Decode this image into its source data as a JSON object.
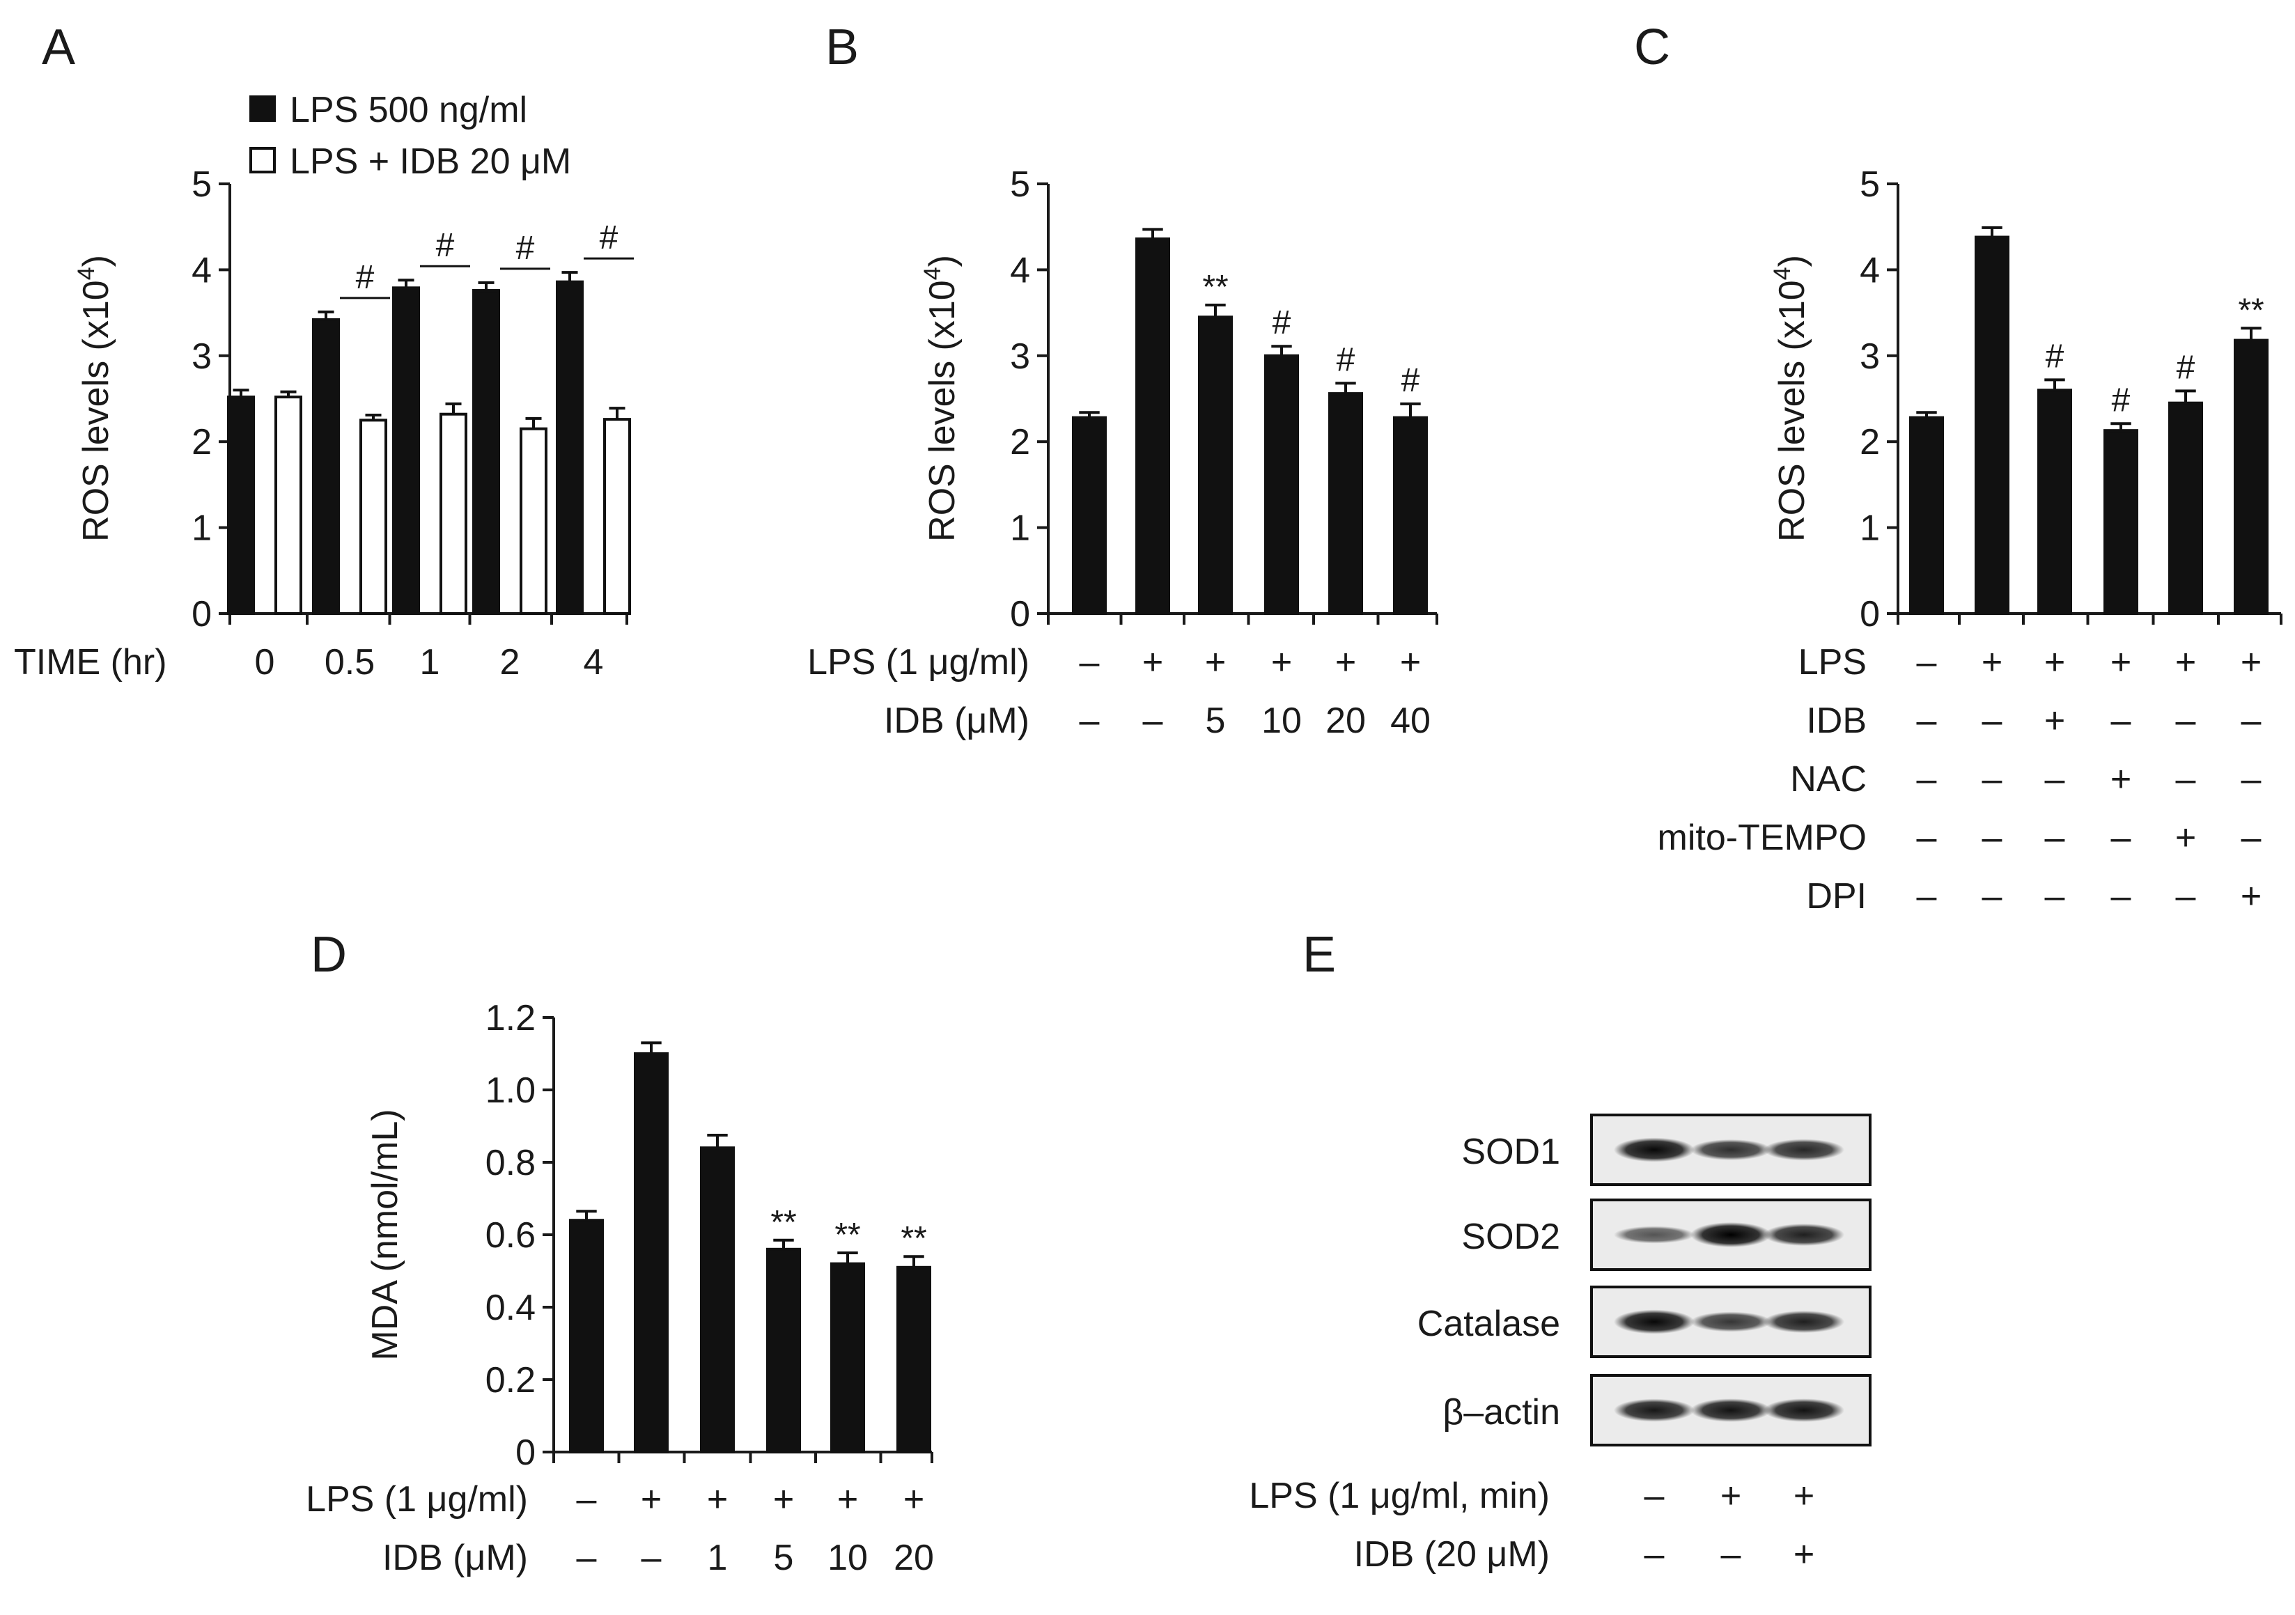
{
  "chart_data": [
    {
      "panel": "A",
      "type": "bar",
      "ylabel": "ROS levels (x10",
      "ylabel_sup": "4",
      "ylabel_close": ")",
      "ylim": [
        0,
        5
      ],
      "yticks": [
        "0",
        "1",
        "2",
        "3",
        "4",
        "5"
      ],
      "xlabel": "TIME  (hr)",
      "categories": [
        "0",
        "0.5",
        "1",
        "2",
        "4"
      ],
      "series": [
        {
          "name": "LPS 500 ng/ml",
          "fill": "#111111",
          "values": [
            2.52,
            3.42,
            3.79,
            3.76,
            3.86
          ],
          "errors": [
            0.08,
            0.09,
            0.09,
            0.09,
            0.11
          ]
        },
        {
          "name": "LPS + IDB 20 μM",
          "fill": "#ffffff",
          "values": [
            2.52,
            2.25,
            2.32,
            2.15,
            2.26
          ],
          "errors": [
            0.06,
            0.06,
            0.12,
            0.12,
            0.13
          ]
        }
      ],
      "significance": [
        "",
        "#",
        "#",
        "#",
        "#"
      ]
    },
    {
      "panel": "B",
      "type": "bar",
      "ylabel": "ROS levels (x10",
      "ylabel_sup": "4",
      "ylabel_close": ")",
      "ylim": [
        0,
        5
      ],
      "yticks": [
        "0",
        "1",
        "2",
        "3",
        "4",
        "5"
      ],
      "values": [
        2.28,
        4.36,
        3.45,
        3.0,
        2.56,
        2.28
      ],
      "errors": [
        0.06,
        0.11,
        0.14,
        0.11,
        0.12,
        0.16
      ],
      "significance": [
        "",
        "",
        "**",
        "#",
        "#",
        "#"
      ],
      "conditions": [
        {
          "label": "LPS (1 μg/ml)",
          "marks": [
            "–",
            "+",
            "+",
            "+",
            "+",
            "+"
          ]
        },
        {
          "label": "IDB (μM)",
          "marks": [
            "–",
            "–",
            "5",
            "10",
            "20",
            "40"
          ]
        }
      ]
    },
    {
      "panel": "C",
      "type": "bar",
      "ylabel": "ROS levels (x10",
      "ylabel_sup": "4",
      "ylabel_close": ")",
      "ylim": [
        0,
        5
      ],
      "yticks": [
        "0",
        "1",
        "2",
        "3",
        "4",
        "5"
      ],
      "values": [
        2.28,
        4.38,
        2.6,
        2.13,
        2.45,
        3.18
      ],
      "errors": [
        0.06,
        0.11,
        0.12,
        0.08,
        0.14,
        0.14
      ],
      "significance": [
        "",
        "",
        "#",
        "#",
        "#",
        "**"
      ],
      "conditions": [
        {
          "label": "LPS",
          "marks": [
            "–",
            "+",
            "+",
            "+",
            "+",
            "+"
          ]
        },
        {
          "label": "IDB",
          "marks": [
            "–",
            "–",
            "+",
            "–",
            "–",
            "–"
          ]
        },
        {
          "label": "NAC",
          "marks": [
            "–",
            "–",
            "–",
            "+",
            "–",
            "–"
          ]
        },
        {
          "label": "mito-TEMPO",
          "marks": [
            "–",
            "–",
            "–",
            "–",
            "+",
            "–"
          ]
        },
        {
          "label": "DPI",
          "marks": [
            "–",
            "–",
            "–",
            "–",
            "–",
            "+"
          ]
        }
      ]
    },
    {
      "panel": "D",
      "type": "bar",
      "ylabel": "MDA (nmol/mL)",
      "ylim": [
        0,
        1.2
      ],
      "yticks": [
        "0",
        "0.2",
        "0.4",
        "0.6",
        "0.8",
        "1.0",
        "1.2"
      ],
      "values": [
        0.64,
        1.1,
        0.84,
        0.56,
        0.52,
        0.51
      ],
      "errors": [
        0.025,
        0.03,
        0.035,
        0.025,
        0.03,
        0.03
      ],
      "significance": [
        "",
        "",
        "",
        "**",
        "**",
        "**"
      ],
      "conditions": [
        {
          "label": "LPS (1 μg/ml)",
          "marks": [
            "–",
            "+",
            "+",
            "+",
            "+",
            "+"
          ]
        },
        {
          "label": "IDB (μM)",
          "marks": [
            "–",
            "–",
            "1",
            "5",
            "10",
            "20"
          ]
        }
      ]
    }
  ],
  "blot": {
    "panel": "E",
    "bands": [
      {
        "label": "SOD1",
        "intensity": [
          0.95,
          0.7,
          0.75
        ]
      },
      {
        "label": "SOD2",
        "intensity": [
          0.45,
          1.0,
          0.8
        ]
      },
      {
        "label": "Catalase",
        "intensity": [
          0.95,
          0.65,
          0.8
        ]
      },
      {
        "label": "β–actin",
        "intensity": [
          0.85,
          0.88,
          0.88
        ]
      }
    ],
    "conditions": [
      {
        "label": "LPS (1 μg/ml, min)",
        "marks": [
          "–",
          "+",
          "+"
        ]
      },
      {
        "label": "IDB (20 μM)",
        "marks": [
          "–",
          "–",
          "+"
        ]
      }
    ]
  }
}
